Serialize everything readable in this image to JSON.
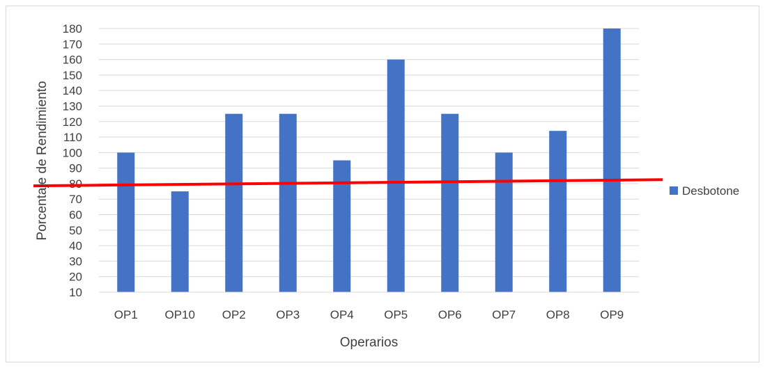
{
  "chart_data": {
    "type": "bar",
    "title": "",
    "xlabel": "Operarios",
    "ylabel": "Porcentaje de Rendimiento",
    "categories": [
      "OP1",
      "OP10",
      "OP2",
      "OP3",
      "OP4",
      "OP5",
      "OP6",
      "OP7",
      "OP8",
      "OP9"
    ],
    "series": [
      {
        "name": "Desbotone",
        "color": "#4472c4",
        "values": [
          100,
          75,
          125,
          125,
          95,
          160,
          125,
          100,
          114,
          180
        ]
      }
    ],
    "ylim": [
      10,
      180
    ],
    "yticks": [
      10,
      20,
      30,
      40,
      50,
      60,
      70,
      80,
      90,
      100,
      110,
      120,
      130,
      140,
      150,
      160,
      170,
      180
    ],
    "grid": true,
    "legend_position": "right",
    "reference_line": {
      "color": "#ff0000",
      "y_start": 79,
      "y_end": 83
    }
  }
}
